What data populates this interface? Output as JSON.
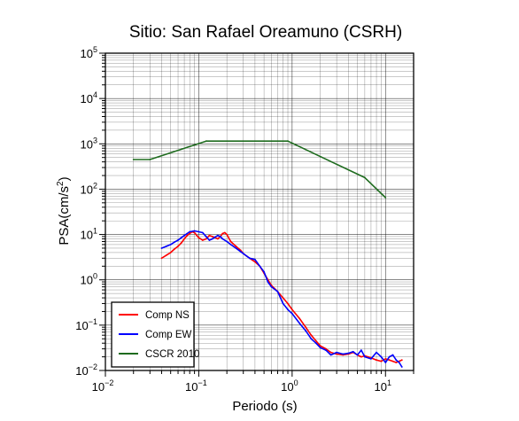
{
  "chart_data": {
    "type": "line",
    "title": "Sitio: San Rafael Oreamuno (CSRH)",
    "xlabel": "Periodo (s)",
    "ylabel_main": "PSA(cm/s",
    "ylabel_sup": "2",
    "ylabel_close": ")",
    "xscale": "log",
    "yscale": "log",
    "xlim": [
      0.01,
      20
    ],
    "ylim": [
      0.01,
      100000
    ],
    "grid": true,
    "legend_position": "bottom-left",
    "x_ticks": [
      {
        "value": 0.01,
        "base": "10",
        "exp": "−2"
      },
      {
        "value": 0.1,
        "base": "10",
        "exp": "−1"
      },
      {
        "value": 1,
        "base": "10",
        "exp": "0"
      },
      {
        "value": 10,
        "base": "10",
        "exp": "1"
      }
    ],
    "y_ticks": [
      {
        "value": 0.01,
        "base": "10",
        "exp": "−2"
      },
      {
        "value": 0.1,
        "base": "10",
        "exp": "−1"
      },
      {
        "value": 1,
        "base": "10",
        "exp": "0"
      },
      {
        "value": 10,
        "base": "10",
        "exp": "1"
      },
      {
        "value": 100,
        "base": "10",
        "exp": "2"
      },
      {
        "value": 1000,
        "base": "10",
        "exp": "3"
      },
      {
        "value": 10000,
        "base": "10",
        "exp": "4"
      },
      {
        "value": 100000,
        "base": "10",
        "exp": "5"
      }
    ],
    "series": [
      {
        "name": "Comp NS",
        "color": "#ff0000",
        "x": [
          0.04,
          0.045,
          0.05,
          0.055,
          0.06,
          0.065,
          0.07,
          0.075,
          0.08,
          0.085,
          0.09,
          0.1,
          0.11,
          0.12,
          0.13,
          0.14,
          0.15,
          0.16,
          0.17,
          0.18,
          0.19,
          0.2,
          0.22,
          0.25,
          0.28,
          0.3,
          0.35,
          0.4,
          0.45,
          0.5,
          0.55,
          0.6,
          0.7,
          0.8,
          0.9,
          1.0,
          1.2,
          1.4,
          1.6,
          1.8,
          2.0,
          2.3,
          2.6,
          3.0,
          3.5,
          4.0,
          4.5,
          5.0,
          5.5,
          6.0,
          7.0,
          8.0,
          9.0,
          10.0,
          11.0,
          12.0,
          13.0,
          14.0,
          15.0
        ],
        "values": [
          3.0,
          3.5,
          4.0,
          4.8,
          5.5,
          6.5,
          8.0,
          9.5,
          10.5,
          11.5,
          11.0,
          8.5,
          7.5,
          8.0,
          9.5,
          9.0,
          8.5,
          8.0,
          9.0,
          10.5,
          11.0,
          10.0,
          7.0,
          5.5,
          4.5,
          3.8,
          3.0,
          2.5,
          2.0,
          1.4,
          1.0,
          0.75,
          0.55,
          0.4,
          0.3,
          0.22,
          0.14,
          0.09,
          0.06,
          0.045,
          0.035,
          0.03,
          0.025,
          0.023,
          0.022,
          0.023,
          0.025,
          0.022,
          0.02,
          0.021,
          0.019,
          0.017,
          0.016,
          0.018,
          0.017,
          0.016,
          0.015,
          0.016,
          0.017
        ]
      },
      {
        "name": "Comp EW",
        "color": "#0000ff",
        "x": [
          0.04,
          0.045,
          0.05,
          0.055,
          0.06,
          0.065,
          0.07,
          0.075,
          0.08,
          0.09,
          0.1,
          0.11,
          0.12,
          0.13,
          0.14,
          0.15,
          0.16,
          0.17,
          0.18,
          0.2,
          0.22,
          0.25,
          0.28,
          0.3,
          0.35,
          0.4,
          0.45,
          0.5,
          0.55,
          0.6,
          0.7,
          0.8,
          0.9,
          1.0,
          1.2,
          1.4,
          1.6,
          1.8,
          2.0,
          2.3,
          2.6,
          3.0,
          3.5,
          4.0,
          4.5,
          5.0,
          5.5,
          6.0,
          7.0,
          8.0,
          9.0,
          10.0,
          11.0,
          12.0,
          13.0,
          14.0,
          15.0
        ],
        "values": [
          5.0,
          5.5,
          6.0,
          6.8,
          7.5,
          8.5,
          9.5,
          10.5,
          11.5,
          12.0,
          11.5,
          11.0,
          9.0,
          7.5,
          8.0,
          8.8,
          9.5,
          9.0,
          8.0,
          7.0,
          6.0,
          5.0,
          4.2,
          3.8,
          3.0,
          2.8,
          2.0,
          1.5,
          0.9,
          0.7,
          0.55,
          0.3,
          0.22,
          0.18,
          0.11,
          0.075,
          0.05,
          0.04,
          0.032,
          0.028,
          0.022,
          0.025,
          0.023,
          0.024,
          0.026,
          0.022,
          0.028,
          0.02,
          0.018,
          0.025,
          0.02,
          0.015,
          0.02,
          0.022,
          0.017,
          0.015,
          0.012
        ]
      },
      {
        "name": "CSCR 2010",
        "color": "#1e6b1e",
        "x": [
          0.02,
          0.03,
          0.12,
          0.9,
          6.0,
          10.0
        ],
        "values": [
          450,
          450,
          1150,
          1150,
          180,
          65
        ]
      }
    ]
  }
}
